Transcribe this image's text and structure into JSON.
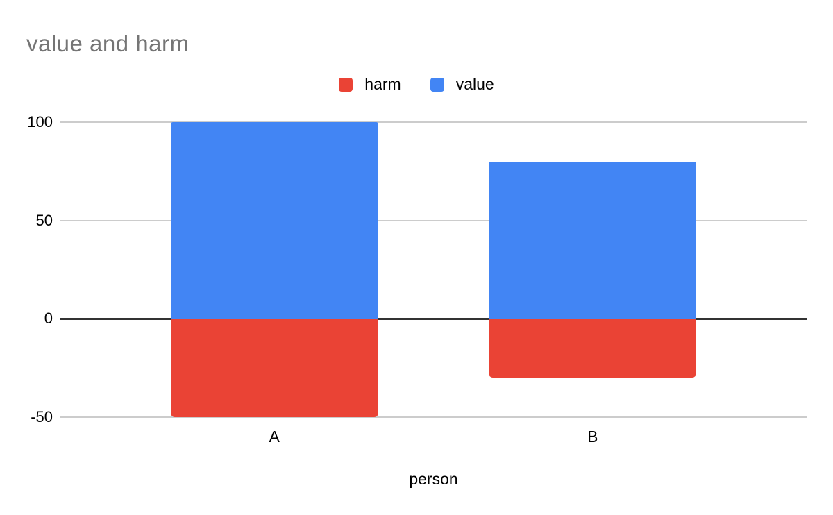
{
  "chart_data": {
    "type": "bar",
    "stacked": true,
    "title": "value and harm",
    "xlabel": "person",
    "ylabel": "",
    "categories": [
      "A",
      "B"
    ],
    "series": [
      {
        "name": "harm",
        "color": "#EA4335",
        "values": [
          -50,
          -30
        ]
      },
      {
        "name": "value",
        "color": "#4285F4",
        "values": [
          100,
          80
        ]
      }
    ],
    "ylim": [
      -50,
      100
    ],
    "y_ticks": [
      100,
      50,
      0,
      -50
    ],
    "grid": true,
    "gridline_color": "#cccccc",
    "zero_line_color": "#333333",
    "title_color": "#757575",
    "legend_position": "top"
  }
}
